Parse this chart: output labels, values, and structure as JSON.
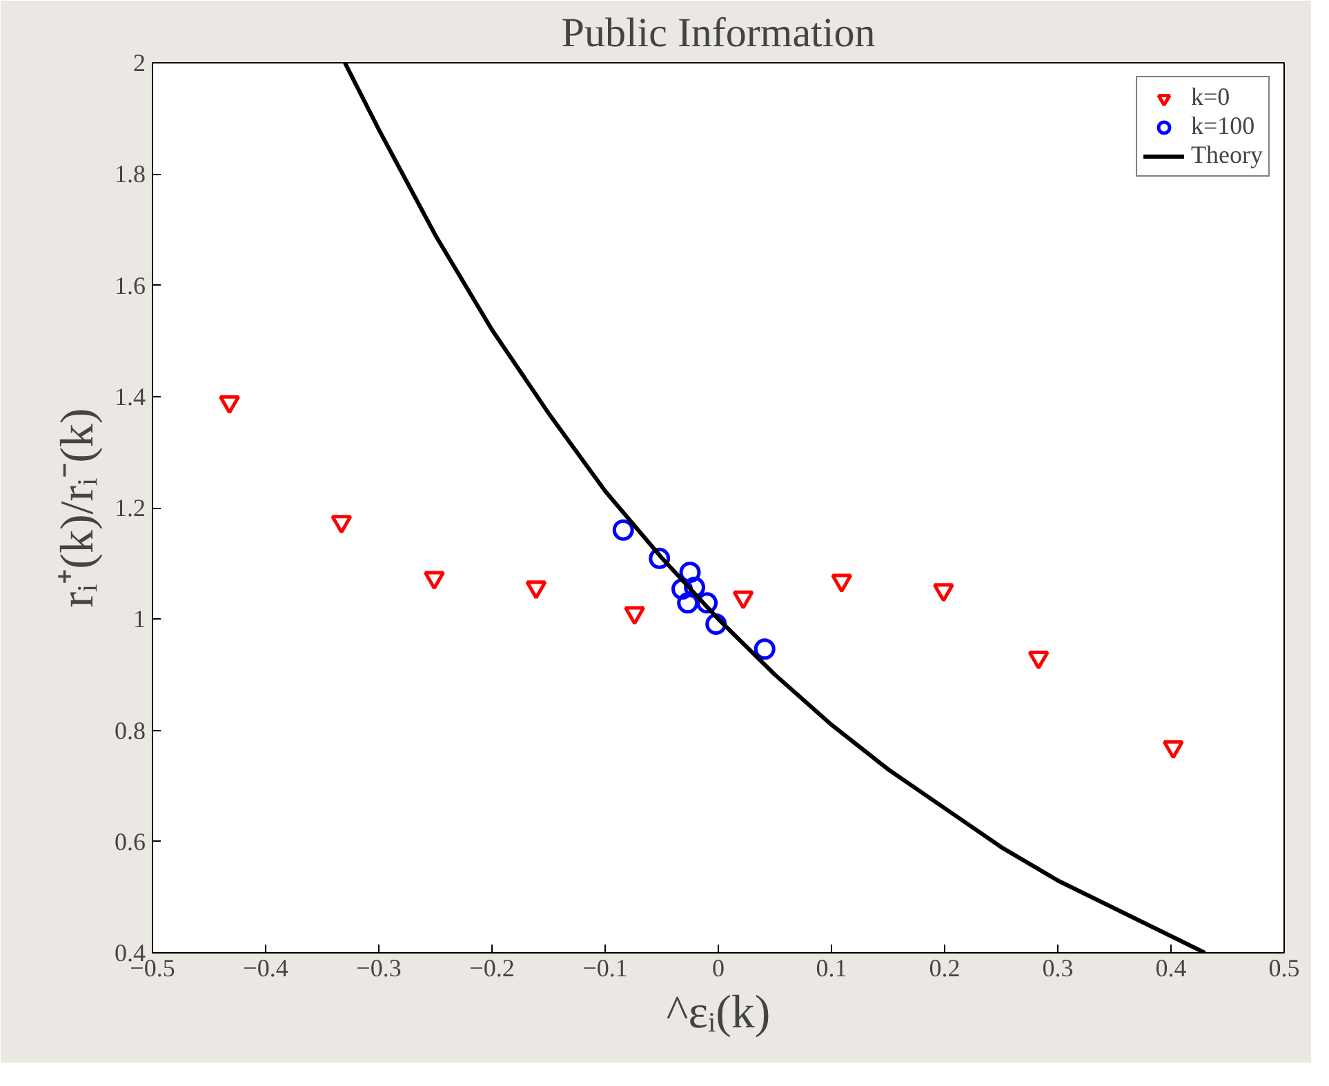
{
  "chart_data": {
    "type": "scatter",
    "title": "Public Information",
    "xlabel": "^εᵢ(k)",
    "ylabel": "rᵢ⁺(k)/rᵢ⁻(k)",
    "xlim": [
      -0.5,
      0.5
    ],
    "ylim": [
      0.4,
      2
    ],
    "xticks": [
      {
        "value": -0.5,
        "label": "−0.5"
      },
      {
        "value": -0.4,
        "label": "−0.4"
      },
      {
        "value": -0.3,
        "label": "−0.3"
      },
      {
        "value": -0.2,
        "label": "−0.2"
      },
      {
        "value": -0.1,
        "label": "−0.1"
      },
      0,
      0.1,
      0.2,
      0.3,
      0.4,
      0.5
    ],
    "yticks": [
      0.4,
      0.6,
      0.8,
      1,
      1.2,
      1.4,
      1.6,
      1.8,
      2
    ],
    "grid": false,
    "legend": "top right",
    "series": [
      {
        "name": "k=0",
        "marker": "triangle",
        "color": "#ff0000",
        "x": [
          -0.432,
          -0.333,
          -0.251,
          -0.161,
          -0.074,
          0.022,
          0.109,
          0.199,
          0.283,
          0.402
        ],
        "values": [
          1.39,
          1.175,
          1.074,
          1.057,
          1.011,
          1.039,
          1.069,
          1.052,
          0.931,
          0.77
        ]
      },
      {
        "name": "k=100",
        "marker": "circle",
        "color": "#0000ff",
        "x": [
          -0.084,
          -0.052,
          -0.025,
          -0.032,
          -0.021,
          -0.027,
          -0.01,
          -0.002,
          0.041
        ],
        "values": [
          1.16,
          1.109,
          1.084,
          1.054,
          1.057,
          1.029,
          1.029,
          0.991,
          0.946
        ]
      },
      {
        "name": "Theory",
        "type": "line",
        "marker": "none",
        "line_style": "solid",
        "color": "#000000",
        "x": [
          -0.33,
          -0.3,
          -0.25,
          -0.2,
          -0.15,
          -0.1,
          -0.05,
          0,
          0.05,
          0.1,
          0.15,
          0.2,
          0.25,
          0.3,
          0.35,
          0.4,
          0.43
        ],
        "values": [
          2.0,
          1.88,
          1.69,
          1.52,
          1.37,
          1.23,
          1.11,
          1.0,
          0.9,
          0.81,
          0.73,
          0.66,
          0.59,
          0.53,
          0.48,
          0.43,
          0.4
        ]
      }
    ]
  }
}
